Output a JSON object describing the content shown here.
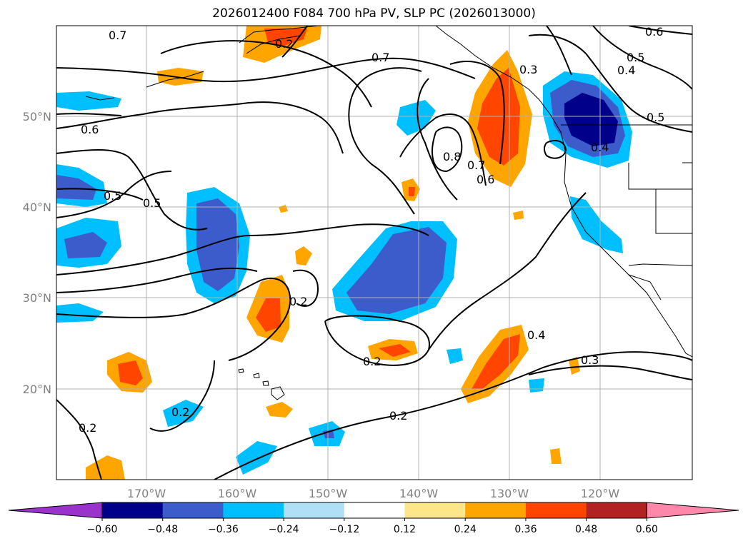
{
  "title": "2026012400 F084 700 hPa PV, SLP PC (2026013000)",
  "lat_labels": [
    "50°N",
    "40°N",
    "30°N",
    "20°N"
  ],
  "lon_labels": [
    "170°W",
    "160°W",
    "150°W",
    "140°W",
    "130°W",
    "120°W"
  ],
  "contour_labels": [
    "0.7",
    "0.7",
    "0.6",
    "0.6",
    "0.5",
    "0.5",
    "0.5",
    "0.4",
    "0.4",
    "0.3",
    "0.8",
    "0.7",
    "0.6",
    "0.5",
    "0.4",
    "0.3",
    "0.2",
    "0.2",
    "0.2",
    "0.2",
    "0.2",
    "0.2"
  ],
  "colorbar": {
    "tick_labels": [
      "−0.60",
      "−0.48",
      "−0.36",
      "−0.24",
      "−0.12",
      "0.12",
      "0.24",
      "0.36",
      "0.48",
      "0.60"
    ],
    "colors": [
      "#9933cc",
      "#00008b",
      "#3c5ccc",
      "#00bfff",
      "#b0e0f8",
      "#ffffff",
      "#fde68a",
      "#ffa500",
      "#ff4500",
      "#b22222",
      "#ff88aa"
    ]
  }
}
